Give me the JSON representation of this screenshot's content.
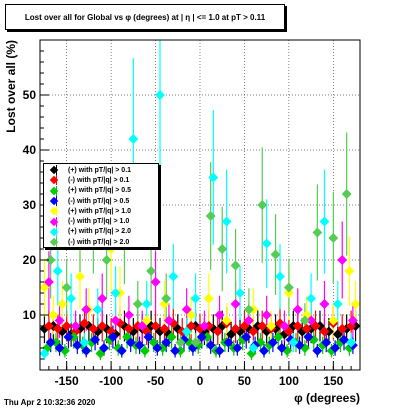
{
  "title": "Lost over all for Global vs φ (degrees) at | η | <= 1.0 at pT > 0.11",
  "timestamp": "Thu Apr  2 10:32:36 2020",
  "chart_data": {
    "type": "scatter",
    "title": "Lost over all for Global vs φ (degrees) at | η | <= 1.0 at pT > 0.11",
    "xlabel": "φ (degrees)",
    "ylabel": "Lost over all (%)",
    "xlim": [
      -180,
      180
    ],
    "ylim": [
      0,
      60
    ],
    "x_ticks": [
      -150,
      -100,
      -50,
      0,
      50,
      100,
      150
    ],
    "y_ticks": [
      10,
      20,
      30,
      40,
      50
    ],
    "grid": true,
    "legend_position": "left",
    "series": [
      {
        "name": "(+) with pT/|q| > 0.1",
        "color": "#000000",
        "points": [
          [
            -175,
            7.5
          ],
          [
            -165,
            8
          ],
          [
            -155,
            7
          ],
          [
            -145,
            6.5
          ],
          [
            -135,
            7.5
          ],
          [
            -125,
            8
          ],
          [
            -115,
            7
          ],
          [
            -105,
            7.5
          ],
          [
            -95,
            6.5
          ],
          [
            -85,
            8
          ],
          [
            -75,
            7
          ],
          [
            -65,
            7.5
          ],
          [
            -55,
            8
          ],
          [
            -45,
            7
          ],
          [
            -35,
            6.5
          ],
          [
            -25,
            7.5
          ],
          [
            -15,
            7
          ],
          [
            -5,
            8
          ],
          [
            5,
            7
          ],
          [
            15,
            7.5
          ],
          [
            25,
            8
          ],
          [
            35,
            6.5
          ],
          [
            45,
            7
          ],
          [
            55,
            7.5
          ],
          [
            65,
            8
          ],
          [
            75,
            7
          ],
          [
            85,
            7.5
          ],
          [
            95,
            6.5
          ],
          [
            105,
            8
          ],
          [
            115,
            7
          ],
          [
            125,
            7.5
          ],
          [
            135,
            8
          ],
          [
            145,
            7
          ],
          [
            155,
            6.5
          ],
          [
            165,
            7.5
          ],
          [
            175,
            8
          ]
        ]
      },
      {
        "name": "(-) with pT/|q| > 0.1",
        "color": "#ff0000",
        "points": [
          [
            -170,
            8
          ],
          [
            -160,
            7.5
          ],
          [
            -150,
            8
          ],
          [
            -140,
            7
          ],
          [
            -130,
            8.5
          ],
          [
            -120,
            7.5
          ],
          [
            -110,
            8
          ],
          [
            -100,
            7
          ],
          [
            -90,
            8.5
          ],
          [
            -80,
            7.5
          ],
          [
            -70,
            8
          ],
          [
            -60,
            7
          ],
          [
            -50,
            8
          ],
          [
            -40,
            7.5
          ],
          [
            -30,
            8.5
          ],
          [
            -20,
            7
          ],
          [
            -10,
            8
          ],
          [
            0,
            7.5
          ],
          [
            10,
            8
          ],
          [
            20,
            7
          ],
          [
            30,
            8.5
          ],
          [
            40,
            7.5
          ],
          [
            50,
            8
          ],
          [
            60,
            7
          ],
          [
            70,
            8
          ],
          [
            80,
            7.5
          ],
          [
            90,
            8.5
          ],
          [
            100,
            7
          ],
          [
            110,
            8
          ],
          [
            120,
            7.5
          ],
          [
            130,
            8
          ],
          [
            140,
            7
          ],
          [
            150,
            8.5
          ],
          [
            160,
            7.5
          ],
          [
            170,
            8
          ]
        ]
      },
      {
        "name": "(+) with pT/|q| > 0.5",
        "color": "#00cc00",
        "points": [
          [
            -172,
            4
          ],
          [
            -162,
            5
          ],
          [
            -152,
            3.5
          ],
          [
            -142,
            6
          ],
          [
            -132,
            4.5
          ],
          [
            -122,
            5
          ],
          [
            -112,
            3
          ],
          [
            -102,
            5.5
          ],
          [
            -92,
            4
          ],
          [
            -82,
            6
          ],
          [
            -72,
            4.5
          ],
          [
            -62,
            3.5
          ],
          [
            -52,
            5
          ],
          [
            -42,
            4
          ],
          [
            -32,
            6
          ],
          [
            -22,
            3.5
          ],
          [
            -12,
            5
          ],
          [
            -2,
            4.5
          ],
          [
            8,
            6
          ],
          [
            18,
            3.5
          ],
          [
            28,
            5
          ],
          [
            38,
            4
          ],
          [
            48,
            5.5
          ],
          [
            58,
            3
          ],
          [
            68,
            5
          ],
          [
            78,
            4.5
          ],
          [
            88,
            6
          ],
          [
            98,
            3.5
          ],
          [
            108,
            5
          ],
          [
            118,
            4
          ],
          [
            128,
            5.5
          ],
          [
            138,
            4.5
          ],
          [
            148,
            3.5
          ],
          [
            158,
            5
          ],
          [
            168,
            4
          ]
        ]
      },
      {
        "name": "(-) with pT/|q| > 0.5",
        "color": "#0000ff",
        "points": [
          [
            -168,
            5
          ],
          [
            -158,
            4
          ],
          [
            -148,
            6
          ],
          [
            -138,
            4.5
          ],
          [
            -128,
            3.5
          ],
          [
            -118,
            5.5
          ],
          [
            -108,
            4
          ],
          [
            -98,
            6
          ],
          [
            -88,
            3.5
          ],
          [
            -78,
            5
          ],
          [
            -68,
            4.5
          ],
          [
            -58,
            6
          ],
          [
            -48,
            4
          ],
          [
            -38,
            5
          ],
          [
            -28,
            3.5
          ],
          [
            -18,
            5.5
          ],
          [
            -8,
            4
          ],
          [
            2,
            6
          ],
          [
            12,
            4.5
          ],
          [
            22,
            3.5
          ],
          [
            32,
            5
          ],
          [
            42,
            4
          ],
          [
            52,
            6
          ],
          [
            62,
            4.5
          ],
          [
            72,
            3.5
          ],
          [
            82,
            5
          ],
          [
            92,
            4
          ],
          [
            102,
            5.5
          ],
          [
            112,
            4.5
          ],
          [
            122,
            6
          ],
          [
            132,
            3.5
          ],
          [
            142,
            5
          ],
          [
            152,
            4
          ],
          [
            162,
            5.5
          ],
          [
            172,
            4.5
          ]
        ]
      },
      {
        "name": "(+) with pT/|q| > 1.0",
        "color": "#ffff00",
        "points": [
          [
            -175,
            15
          ],
          [
            -165,
            10
          ],
          [
            -155,
            12
          ],
          [
            -135,
            17
          ],
          [
            -125,
            11
          ],
          [
            -100,
            22
          ],
          [
            -90,
            14
          ],
          [
            -60,
            9
          ],
          [
            -40,
            12
          ],
          [
            -10,
            10
          ],
          [
            10,
            13
          ],
          [
            30,
            9
          ],
          [
            60,
            11
          ],
          [
            80,
            8
          ],
          [
            100,
            14
          ],
          [
            120,
            10
          ],
          [
            150,
            9
          ],
          [
            168,
            18
          ],
          [
            175,
            12
          ]
        ]
      },
      {
        "name": "(-) with pT/|q| > 1.0",
        "color": "#ff00ff",
        "points": [
          [
            -170,
            16
          ],
          [
            -158,
            9
          ],
          [
            -140,
            8
          ],
          [
            -128,
            11
          ],
          [
            -110,
            13
          ],
          [
            -95,
            9
          ],
          [
            -80,
            10
          ],
          [
            -65,
            8
          ],
          [
            -50,
            16
          ],
          [
            -35,
            9
          ],
          [
            -15,
            11
          ],
          [
            5,
            8
          ],
          [
            22,
            10
          ],
          [
            40,
            12
          ],
          [
            55,
            9
          ],
          [
            75,
            10
          ],
          [
            95,
            8
          ],
          [
            110,
            11
          ],
          [
            125,
            9
          ],
          [
            140,
            12
          ],
          [
            160,
            20
          ],
          [
            172,
            9
          ]
        ]
      },
      {
        "name": "(+) with pT/|q| > 2.0",
        "color": "#00ffff",
        "points": [
          [
            -175,
            3
          ],
          [
            -160,
            18
          ],
          [
            -145,
            13
          ],
          [
            -130,
            5
          ],
          [
            -115,
            11
          ],
          [
            -95,
            14
          ],
          [
            -75,
            42
          ],
          [
            -60,
            12
          ],
          [
            -45,
            50
          ],
          [
            -30,
            17
          ],
          [
            -15,
            7
          ],
          [
            -5,
            13
          ],
          [
            15,
            35
          ],
          [
            30,
            27
          ],
          [
            45,
            14
          ],
          [
            60,
            4
          ],
          [
            75,
            23
          ],
          [
            90,
            17
          ],
          [
            105,
            5
          ],
          [
            125,
            13
          ],
          [
            140,
            27
          ],
          [
            155,
            12
          ],
          [
            170,
            5
          ]
        ]
      },
      {
        "name": "(-) with pT/|q| > 2.0",
        "color": "#55cc55",
        "points": [
          [
            -168,
            20
          ],
          [
            -150,
            15
          ],
          [
            -135,
            25
          ],
          [
            -120,
            27
          ],
          [
            -105,
            20
          ],
          [
            -85,
            24
          ],
          [
            -70,
            12
          ],
          [
            -55,
            18
          ],
          [
            -38,
            13
          ],
          [
            -22,
            5
          ],
          [
            -5,
            5
          ],
          [
            12,
            28
          ],
          [
            25,
            22
          ],
          [
            40,
            19
          ],
          [
            55,
            11
          ],
          [
            70,
            30
          ],
          [
            85,
            21
          ],
          [
            100,
            15
          ],
          [
            118,
            9
          ],
          [
            132,
            25
          ],
          [
            150,
            24
          ],
          [
            165,
            32
          ]
        ]
      }
    ]
  }
}
